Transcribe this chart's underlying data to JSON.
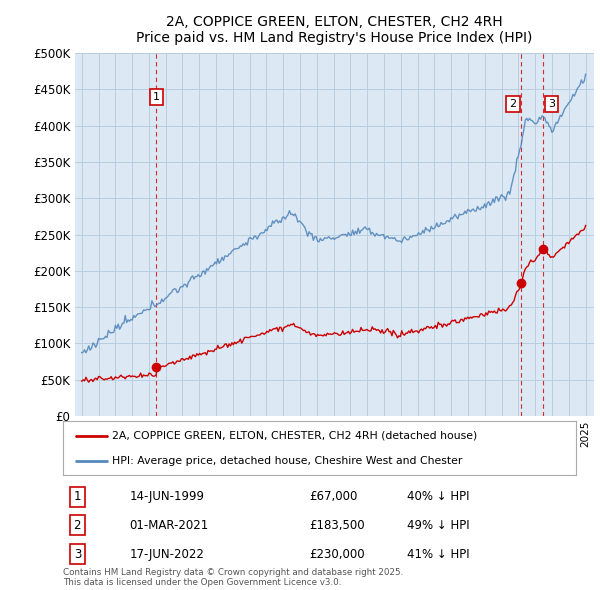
{
  "title": "2A, COPPICE GREEN, ELTON, CHESTER, CH2 4RH",
  "subtitle": "Price paid vs. HM Land Registry's House Price Index (HPI)",
  "legend_label_red": "2A, COPPICE GREEN, ELTON, CHESTER, CH2 4RH (detached house)",
  "legend_label_blue": "HPI: Average price, detached house, Cheshire West and Chester",
  "footer": "Contains HM Land Registry data © Crown copyright and database right 2025.\nThis data is licensed under the Open Government Licence v3.0.",
  "annotations": [
    {
      "num": "1",
      "date": "14-JUN-1999",
      "price": "£67,000",
      "pct": "40% ↓ HPI"
    },
    {
      "num": "2",
      "date": "01-MAR-2021",
      "price": "£183,500",
      "pct": "49% ↓ HPI"
    },
    {
      "num": "3",
      "date": "17-JUN-2022",
      "price": "£230,000",
      "pct": "41% ↓ HPI"
    }
  ],
  "red_color": "#cc0000",
  "blue_color": "#5588bb",
  "dashed_color": "#cc0000",
  "ylim": [
    0,
    500000
  ],
  "yticks": [
    0,
    50000,
    100000,
    150000,
    200000,
    250000,
    300000,
    350000,
    400000,
    450000,
    500000
  ],
  "ytick_labels": [
    "£0",
    "£50K",
    "£100K",
    "£150K",
    "£200K",
    "£250K",
    "£300K",
    "£350K",
    "£400K",
    "£450K",
    "£500K"
  ],
  "background_color": "#dce9f5",
  "chart_bg": "#dce9f5",
  "grid_color": "#b8cfe0",
  "fig_bg": "#ffffff",
  "sale_dates": [
    1999.45,
    2021.17,
    2022.46
  ],
  "sale_prices": [
    67000,
    183500,
    230000
  ],
  "sale_labels": [
    "1",
    "2",
    "3"
  ]
}
